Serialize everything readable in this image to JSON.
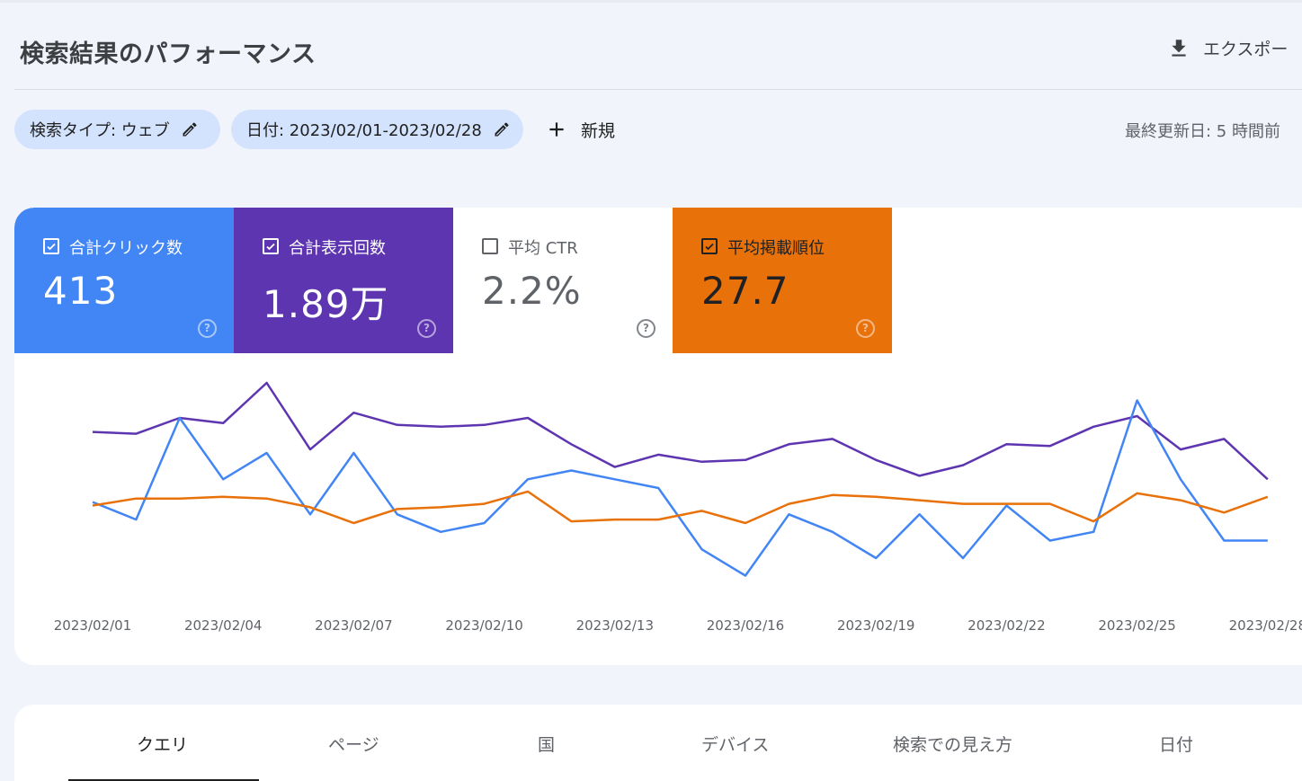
{
  "header": {
    "title": "検索結果のパフォーマンス",
    "export_label": "エクスポー"
  },
  "filters": {
    "search_type": "検索タイプ: ウェブ",
    "date": "日付: 2023/02/01-2023/02/28",
    "new_label": "新規",
    "last_updated": "最終更新日: 5 時間前"
  },
  "metrics": [
    {
      "label": "合計クリック数",
      "value": "413",
      "checked": true,
      "color": "#4285f4"
    },
    {
      "label": "合計表示回数",
      "value": "1.89万",
      "checked": true,
      "color": "#5e35b1"
    },
    {
      "label": "平均 CTR",
      "value": "2.2%",
      "checked": false,
      "color": "#ffffff"
    },
    {
      "label": "平均掲載順位",
      "value": "27.7",
      "checked": true,
      "color": "#e8710a"
    }
  ],
  "chart_data": {
    "type": "line",
    "x_ticks": [
      "2023/02/01",
      "2023/02/04",
      "2023/02/07",
      "2023/02/10",
      "2023/02/13",
      "2023/02/16",
      "2023/02/19",
      "2023/02/22",
      "2023/02/25",
      "2023/02/28"
    ],
    "x": [
      "2023/02/01",
      "2023/02/02",
      "2023/02/03",
      "2023/02/04",
      "2023/02/05",
      "2023/02/06",
      "2023/02/07",
      "2023/02/08",
      "2023/02/09",
      "2023/02/10",
      "2023/02/11",
      "2023/02/12",
      "2023/02/13",
      "2023/02/14",
      "2023/02/15",
      "2023/02/16",
      "2023/02/17",
      "2023/02/18",
      "2023/02/19",
      "2023/02/20",
      "2023/02/21",
      "2023/02/22",
      "2023/02/23",
      "2023/02/24",
      "2023/02/25",
      "2023/02/26",
      "2023/02/27",
      "2023/02/28"
    ],
    "series": [
      {
        "color": "#5e35b1",
        "values": [
          0.72,
          0.71,
          0.8,
          0.77,
          1.0,
          0.62,
          0.83,
          0.76,
          0.75,
          0.76,
          0.8,
          0.65,
          0.52,
          0.59,
          0.55,
          0.56,
          0.65,
          0.68,
          0.56,
          0.47,
          0.53,
          0.65,
          0.64,
          0.75,
          0.81,
          0.62,
          0.68,
          0.45
        ]
      },
      {
        "color": "#4285f4",
        "values": [
          0.32,
          0.22,
          0.8,
          0.45,
          0.6,
          0.25,
          0.6,
          0.25,
          0.15,
          0.2,
          0.45,
          0.5,
          0.45,
          0.4,
          0.05,
          -0.1,
          0.25,
          0.15,
          0.0,
          0.25,
          0.0,
          0.3,
          0.1,
          0.15,
          0.9,
          0.45,
          0.1,
          0.1
        ]
      },
      {
        "color": "#e8710a",
        "values": [
          0.3,
          0.34,
          0.34,
          0.35,
          0.34,
          0.29,
          0.2,
          0.28,
          0.29,
          0.31,
          0.38,
          0.21,
          0.22,
          0.22,
          0.27,
          0.2,
          0.31,
          0.36,
          0.35,
          0.33,
          0.31,
          0.31,
          0.31,
          0.21,
          0.37,
          0.33,
          0.26,
          0.35
        ]
      }
    ]
  },
  "tabs": [
    {
      "label": "クエリ",
      "active": true
    },
    {
      "label": "ページ",
      "active": false
    },
    {
      "label": "国",
      "active": false
    },
    {
      "label": "デバイス",
      "active": false
    },
    {
      "label": "検索での見え方",
      "active": false
    },
    {
      "label": "日付",
      "active": false
    }
  ]
}
